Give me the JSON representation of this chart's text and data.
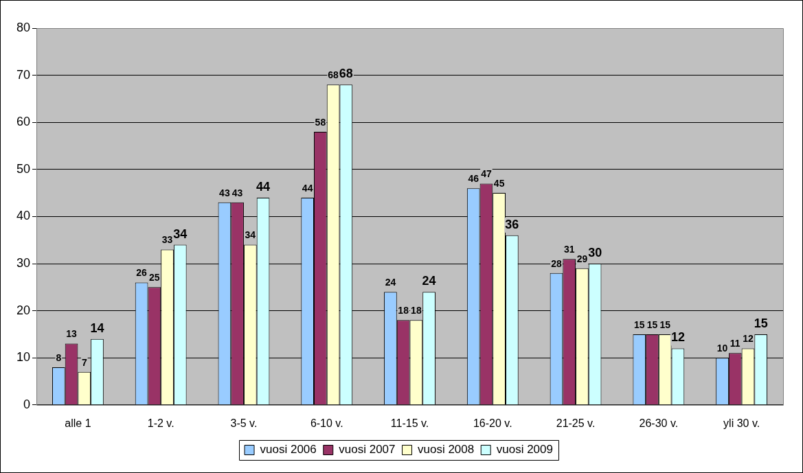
{
  "chart_data": {
    "type": "bar",
    "categories": [
      "alle 1",
      "1-2 v.",
      "3-5 v.",
      "6-10 v.",
      "11-15 v.",
      "16-20 v.",
      "21-25 v.",
      "26-30 v.",
      "yli 30 v."
    ],
    "series": [
      {
        "name": "vuosi 2006",
        "color": "#99ccff",
        "values": [
          8,
          26,
          43,
          44,
          24,
          46,
          28,
          15,
          10
        ]
      },
      {
        "name": "vuosi 2007",
        "color": "#993366",
        "values": [
          13,
          25,
          43,
          58,
          18,
          47,
          31,
          15,
          11
        ]
      },
      {
        "name": "vuosi 2008",
        "color": "#ffffcc",
        "values": [
          7,
          33,
          34,
          68,
          18,
          45,
          29,
          15,
          12
        ]
      },
      {
        "name": "vuosi 2009",
        "color": "#ccffff",
        "values": [
          14,
          34,
          44,
          68,
          24,
          36,
          30,
          12,
          15
        ]
      }
    ],
    "ylim": [
      0,
      80
    ],
    "yticks": [
      0,
      10,
      20,
      30,
      40,
      50,
      60,
      70,
      80
    ],
    "grid": "y",
    "legend": "bottom",
    "data_labels": true
  }
}
